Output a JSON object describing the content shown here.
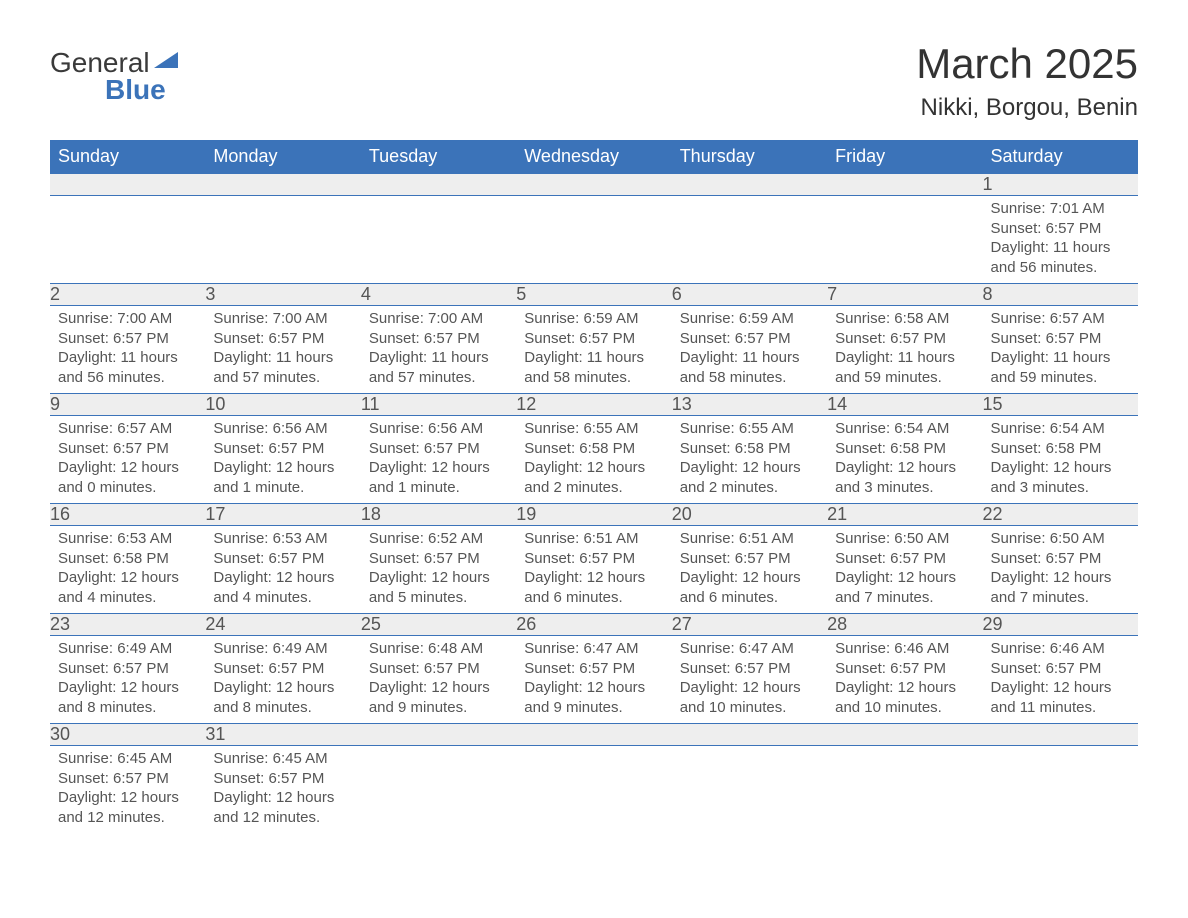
{
  "logo": {
    "text1": "General",
    "text2": "Blue",
    "triangle_color": "#3b73b9"
  },
  "title": "March 2025",
  "location": "Nikki, Borgou, Benin",
  "header_bg": "#3b73b9",
  "daynum_bg": "#eeeeee",
  "text_color": "#555555",
  "weekdays": [
    "Sunday",
    "Monday",
    "Tuesday",
    "Wednesday",
    "Thursday",
    "Friday",
    "Saturday"
  ],
  "weeks": [
    [
      null,
      null,
      null,
      null,
      null,
      null,
      {
        "n": "1",
        "sunrise": "7:01 AM",
        "sunset": "6:57 PM",
        "daylight": "11 hours and 56 minutes."
      }
    ],
    [
      {
        "n": "2",
        "sunrise": "7:00 AM",
        "sunset": "6:57 PM",
        "daylight": "11 hours and 56 minutes."
      },
      {
        "n": "3",
        "sunrise": "7:00 AM",
        "sunset": "6:57 PM",
        "daylight": "11 hours and 57 minutes."
      },
      {
        "n": "4",
        "sunrise": "7:00 AM",
        "sunset": "6:57 PM",
        "daylight": "11 hours and 57 minutes."
      },
      {
        "n": "5",
        "sunrise": "6:59 AM",
        "sunset": "6:57 PM",
        "daylight": "11 hours and 58 minutes."
      },
      {
        "n": "6",
        "sunrise": "6:59 AM",
        "sunset": "6:57 PM",
        "daylight": "11 hours and 58 minutes."
      },
      {
        "n": "7",
        "sunrise": "6:58 AM",
        "sunset": "6:57 PM",
        "daylight": "11 hours and 59 minutes."
      },
      {
        "n": "8",
        "sunrise": "6:57 AM",
        "sunset": "6:57 PM",
        "daylight": "11 hours and 59 minutes."
      }
    ],
    [
      {
        "n": "9",
        "sunrise": "6:57 AM",
        "sunset": "6:57 PM",
        "daylight": "12 hours and 0 minutes."
      },
      {
        "n": "10",
        "sunrise": "6:56 AM",
        "sunset": "6:57 PM",
        "daylight": "12 hours and 1 minute."
      },
      {
        "n": "11",
        "sunrise": "6:56 AM",
        "sunset": "6:57 PM",
        "daylight": "12 hours and 1 minute."
      },
      {
        "n": "12",
        "sunrise": "6:55 AM",
        "sunset": "6:58 PM",
        "daylight": "12 hours and 2 minutes."
      },
      {
        "n": "13",
        "sunrise": "6:55 AM",
        "sunset": "6:58 PM",
        "daylight": "12 hours and 2 minutes."
      },
      {
        "n": "14",
        "sunrise": "6:54 AM",
        "sunset": "6:58 PM",
        "daylight": "12 hours and 3 minutes."
      },
      {
        "n": "15",
        "sunrise": "6:54 AM",
        "sunset": "6:58 PM",
        "daylight": "12 hours and 3 minutes."
      }
    ],
    [
      {
        "n": "16",
        "sunrise": "6:53 AM",
        "sunset": "6:58 PM",
        "daylight": "12 hours and 4 minutes."
      },
      {
        "n": "17",
        "sunrise": "6:53 AM",
        "sunset": "6:57 PM",
        "daylight": "12 hours and 4 minutes."
      },
      {
        "n": "18",
        "sunrise": "6:52 AM",
        "sunset": "6:57 PM",
        "daylight": "12 hours and 5 minutes."
      },
      {
        "n": "19",
        "sunrise": "6:51 AM",
        "sunset": "6:57 PM",
        "daylight": "12 hours and 6 minutes."
      },
      {
        "n": "20",
        "sunrise": "6:51 AM",
        "sunset": "6:57 PM",
        "daylight": "12 hours and 6 minutes."
      },
      {
        "n": "21",
        "sunrise": "6:50 AM",
        "sunset": "6:57 PM",
        "daylight": "12 hours and 7 minutes."
      },
      {
        "n": "22",
        "sunrise": "6:50 AM",
        "sunset": "6:57 PM",
        "daylight": "12 hours and 7 minutes."
      }
    ],
    [
      {
        "n": "23",
        "sunrise": "6:49 AM",
        "sunset": "6:57 PM",
        "daylight": "12 hours and 8 minutes."
      },
      {
        "n": "24",
        "sunrise": "6:49 AM",
        "sunset": "6:57 PM",
        "daylight": "12 hours and 8 minutes."
      },
      {
        "n": "25",
        "sunrise": "6:48 AM",
        "sunset": "6:57 PM",
        "daylight": "12 hours and 9 minutes."
      },
      {
        "n": "26",
        "sunrise": "6:47 AM",
        "sunset": "6:57 PM",
        "daylight": "12 hours and 9 minutes."
      },
      {
        "n": "27",
        "sunrise": "6:47 AM",
        "sunset": "6:57 PM",
        "daylight": "12 hours and 10 minutes."
      },
      {
        "n": "28",
        "sunrise": "6:46 AM",
        "sunset": "6:57 PM",
        "daylight": "12 hours and 10 minutes."
      },
      {
        "n": "29",
        "sunrise": "6:46 AM",
        "sunset": "6:57 PM",
        "daylight": "12 hours and 11 minutes."
      }
    ],
    [
      {
        "n": "30",
        "sunrise": "6:45 AM",
        "sunset": "6:57 PM",
        "daylight": "12 hours and 12 minutes."
      },
      {
        "n": "31",
        "sunrise": "6:45 AM",
        "sunset": "6:57 PM",
        "daylight": "12 hours and 12 minutes."
      },
      null,
      null,
      null,
      null,
      null
    ]
  ],
  "labels": {
    "sunrise": "Sunrise: ",
    "sunset": "Sunset: ",
    "daylight": "Daylight: "
  }
}
